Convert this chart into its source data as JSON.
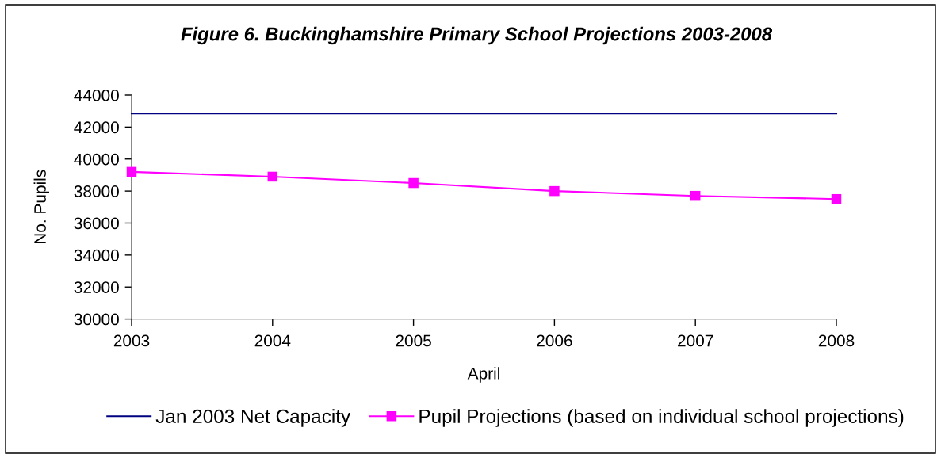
{
  "chart_data": {
    "type": "line",
    "title": "Figure 6. Buckinghamshire Primary School Projections 2003-2008",
    "xlabel": "April",
    "ylabel": "No. Pupils",
    "categories": [
      "2003",
      "2004",
      "2005",
      "2006",
      "2007",
      "2008"
    ],
    "series": [
      {
        "name": "Jan 2003 Net Capacity",
        "color": "#000080",
        "values": [
          42850,
          42850,
          42850,
          42850,
          42850,
          42850
        ],
        "marker": "none"
      },
      {
        "name": "Pupil Projections (based on individual school projections)",
        "color": "#ff00ff",
        "values": [
          39200,
          38900,
          38500,
          38000,
          37700,
          37500
        ],
        "marker": "square"
      }
    ],
    "ylim": [
      30000,
      44000
    ],
    "yticks": [
      30000,
      32000,
      34000,
      36000,
      38000,
      40000,
      42000,
      44000
    ],
    "grid": false,
    "legend": "bottom"
  }
}
